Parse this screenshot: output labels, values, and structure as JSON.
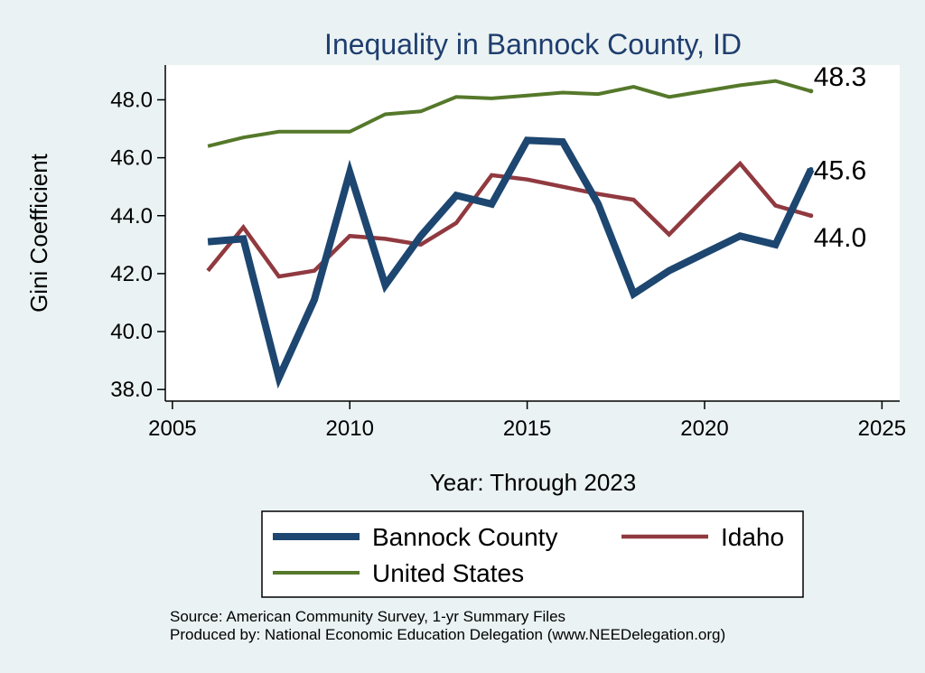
{
  "chart_data": {
    "type": "line",
    "title": "Inequality in Bannock County, ID",
    "xlabel": "Year: Through 2023",
    "ylabel": "Gini Coefficient",
    "xlim": [
      2004.8,
      2025.5
    ],
    "ylim": [
      37.6,
      49.2
    ],
    "xticks": [
      2005,
      2010,
      2015,
      2020,
      2025
    ],
    "yticks": [
      38,
      40,
      42,
      44,
      46,
      48
    ],
    "ytick_labels": [
      "38.0",
      "40.0",
      "42.0",
      "44.0",
      "46.0",
      "48.0"
    ],
    "grid": false,
    "x": [
      2006,
      2007,
      2008,
      2009,
      2010,
      2011,
      2012,
      2013,
      2014,
      2015,
      2016,
      2017,
      2018,
      2019,
      2020,
      2021,
      2022,
      2023
    ],
    "series": [
      {
        "name": "Bannock County",
        "color": "#1d4670",
        "values": [
          43.1,
          43.2,
          38.4,
          41.1,
          45.5,
          41.6,
          43.3,
          44.7,
          44.4,
          46.6,
          46.55,
          44.4,
          41.3,
          42.1,
          42.7,
          43.3,
          43.0,
          45.6
        ],
        "end_label": "45.6"
      },
      {
        "name": "Idaho",
        "color": "#903a40",
        "values": [
          42.1,
          43.6,
          41.9,
          42.1,
          43.3,
          43.2,
          43.0,
          43.75,
          45.4,
          45.25,
          45.0,
          44.75,
          44.55,
          43.35,
          44.6,
          45.8,
          44.35,
          44.0
        ],
        "end_label": "44.0"
      },
      {
        "name": "United States",
        "color": "#55782a",
        "values": [
          46.4,
          46.7,
          46.9,
          46.9,
          46.9,
          47.5,
          47.6,
          48.1,
          48.05,
          48.15,
          48.25,
          48.2,
          48.45,
          48.1,
          48.3,
          48.5,
          48.65,
          48.3
        ],
        "end_label": "48.3"
      }
    ],
    "legend": {
      "placement": "bottom"
    }
  },
  "source": {
    "line1": "Source: American Community Survey, 1-yr Summary Files",
    "line2": "Produced by: National Economic Education Delegation (www.NEEDelegation.org)"
  }
}
